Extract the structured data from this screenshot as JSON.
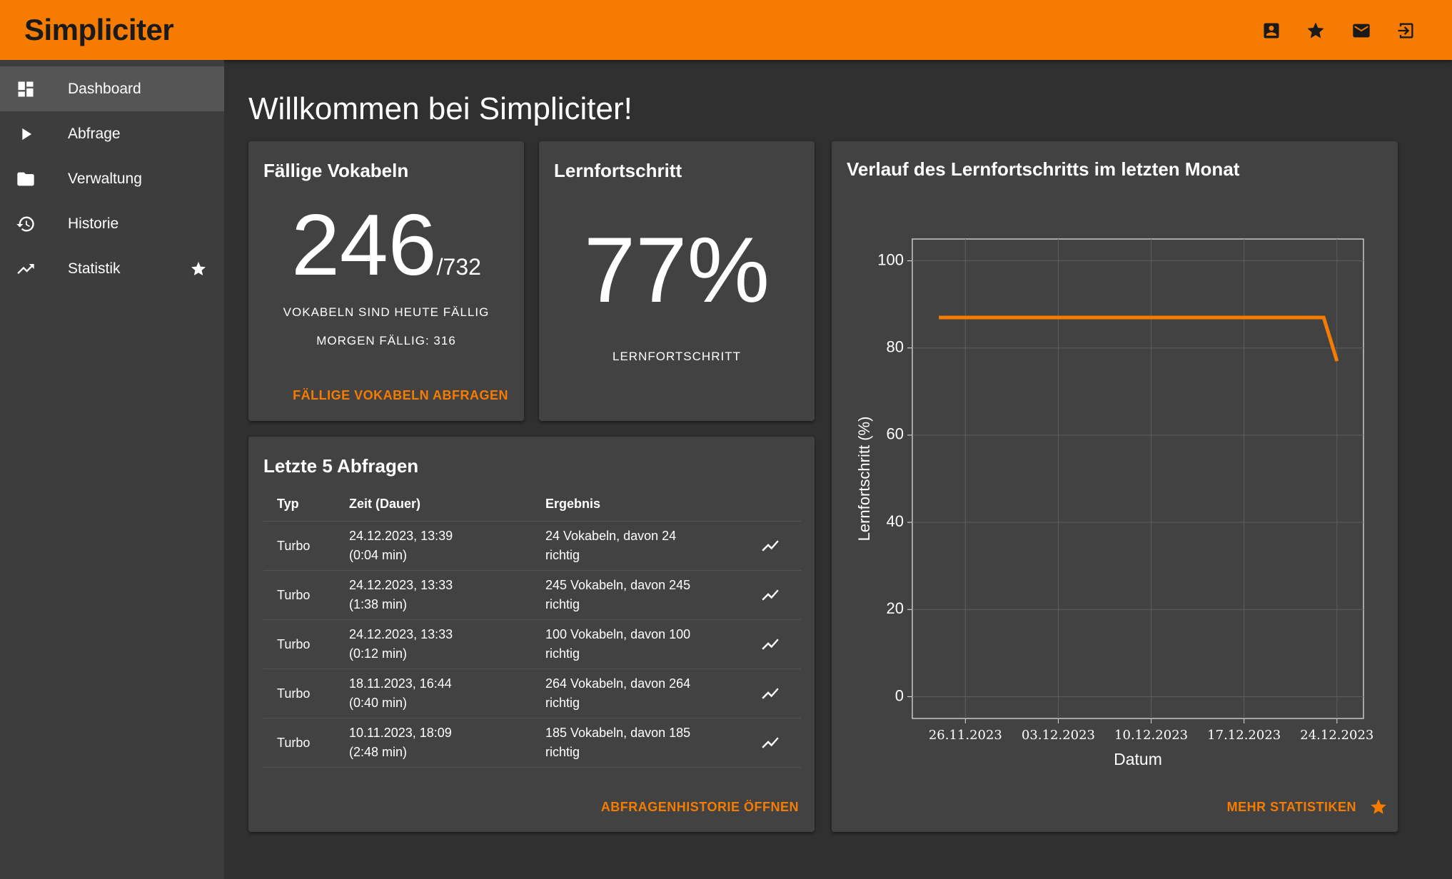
{
  "header": {
    "title": "Simpliciter"
  },
  "nav": {
    "items": [
      "Dashboard",
      "Abfrage",
      "Verwaltung",
      "Historie",
      "Statistik"
    ]
  },
  "welcome": "Willkommen bei Simpliciter!",
  "due_card": {
    "title": "Fällige Vokabeln",
    "count": "246",
    "total": "/732",
    "label": "VOKABELN SIND HEUTE FÄLLIG",
    "tomorrow": "MORGEN FÄLLIG: 316",
    "action": "FÄLLIGE VOKABELN ABFRAGEN"
  },
  "progress_card": {
    "title": "Lernfortschritt",
    "value": "77%",
    "label": "LERNFORTSCHRITT"
  },
  "recent": {
    "title": "Letzte 5 Abfragen",
    "columns": [
      "Typ",
      "Zeit (Dauer)",
      "Ergebnis"
    ],
    "rows": [
      {
        "type": "Turbo",
        "time": "24.12.2023, 13:39",
        "duration": "(0:04 min)",
        "result": "24 Vokabeln, davon 24 richtig"
      },
      {
        "type": "Turbo",
        "time": "24.12.2023, 13:33",
        "duration": "(1:38 min)",
        "result": "245 Vokabeln, davon 245 richtig"
      },
      {
        "type": "Turbo",
        "time": "24.12.2023, 13:33",
        "duration": "(0:12 min)",
        "result": "100 Vokabeln, davon 100 richtig"
      },
      {
        "type": "Turbo",
        "time": "18.11.2023, 16:44",
        "duration": "(0:40 min)",
        "result": "264 Vokabeln, davon 264 richtig"
      },
      {
        "type": "Turbo",
        "time": "10.11.2023, 18:09",
        "duration": "(2:48 min)",
        "result": "185 Vokabeln, davon 185 richtig"
      }
    ],
    "action": "ABFRAGENHISTORIE ÖFFNEN"
  },
  "chart_card": {
    "action": "MEHR STATISTIKEN"
  },
  "chart_data": {
    "type": "line",
    "title": "Verlauf des Lernfortschritts im letzten Monat",
    "x": [
      "24.11.2023",
      "23.12.2023",
      "24.12.2023"
    ],
    "series": [
      {
        "name": "Lernfortschritt",
        "color": "#f57c00",
        "values": [
          87,
          87,
          77
        ]
      }
    ],
    "xlim": [
      "22.11.2023",
      "26.12.2023"
    ],
    "xticks": [
      "26.11.2023",
      "03.12.2023",
      "10.12.2023",
      "17.12.2023",
      "24.12.2023"
    ],
    "ylim": [
      -5,
      105
    ],
    "yticks": [
      0,
      20,
      40,
      60,
      80,
      100
    ],
    "xlabel": "Datum",
    "ylabel": "Lernfortschritt (%)",
    "grid": true
  }
}
